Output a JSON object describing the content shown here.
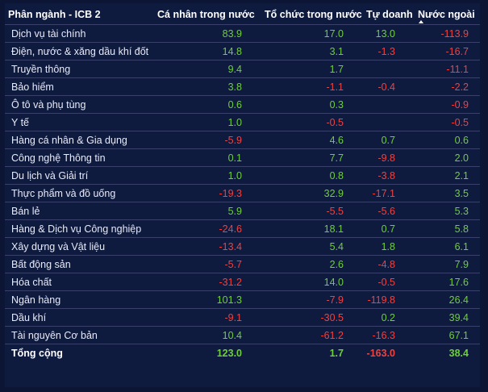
{
  "header": {
    "col0": "Phân ngành - ICB 2",
    "col1": "Cá nhân trong nước",
    "col2": "Tổ chức trong nước",
    "col3": "Tự doanh",
    "col4": "Nước ngoài"
  },
  "rows": [
    {
      "name": "Dịch vụ tài chính",
      "v1": "83.9",
      "v2": "17.0",
      "v3": "13.0",
      "v4": "-113.9"
    },
    {
      "name": "Điện, nước & xăng dầu khí đốt",
      "v1": "14.8",
      "v2": "3.1",
      "v3": "-1.3",
      "v4": "-16.7"
    },
    {
      "name": "Truyền thông",
      "v1": "9.4",
      "v2": "1.7",
      "v3": "",
      "v4": "-11.1"
    },
    {
      "name": "Bảo hiểm",
      "v1": "3.8",
      "v2": "-1.1",
      "v3": "-0.4",
      "v4": "-2.2"
    },
    {
      "name": "Ô tô và phụ tùng",
      "v1": "0.6",
      "v2": "0.3",
      "v3": "",
      "v4": "-0.9"
    },
    {
      "name": "Y tế",
      "v1": "1.0",
      "v2": "-0.5",
      "v3": "",
      "v4": "-0.5"
    },
    {
      "name": "Hàng cá nhân & Gia dụng",
      "v1": "-5.9",
      "v2": "4.6",
      "v3": "0.7",
      "v4": "0.6"
    },
    {
      "name": "Công nghệ Thông tin",
      "v1": "0.1",
      "v2": "7.7",
      "v3": "-9.8",
      "v4": "2.0"
    },
    {
      "name": "Du lịch và Giải trí",
      "v1": "1.0",
      "v2": "0.8",
      "v3": "-3.8",
      "v4": "2.1"
    },
    {
      "name": "Thực phẩm và đồ uống",
      "v1": "-19.3",
      "v2": "32.9",
      "v3": "-17.1",
      "v4": "3.5"
    },
    {
      "name": "Bán lẻ",
      "v1": "5.9",
      "v2": "-5.5",
      "v3": "-5.6",
      "v4": "5.3"
    },
    {
      "name": "Hàng & Dịch vụ Công nghiệp",
      "v1": "-24.6",
      "v2": "18.1",
      "v3": "0.7",
      "v4": "5.8"
    },
    {
      "name": "Xây dựng và Vật liệu",
      "v1": "-13.4",
      "v2": "5.4",
      "v3": "1.8",
      "v4": "6.1"
    },
    {
      "name": "Bất động sản",
      "v1": "-5.7",
      "v2": "2.6",
      "v3": "-4.8",
      "v4": "7.9"
    },
    {
      "name": "Hóa chất",
      "v1": "-31.2",
      "v2": "14.0",
      "v3": "-0.5",
      "v4": "17.6"
    },
    {
      "name": "Ngân hàng",
      "v1": "101.3",
      "v2": "-7.9",
      "v3": "-119.8",
      "v4": "26.4"
    },
    {
      "name": "Dầu khí",
      "v1": "-9.1",
      "v2": "-30.5",
      "v3": "0.2",
      "v4": "39.4"
    },
    {
      "name": "Tài nguyên Cơ bản",
      "v1": "10.4",
      "v2": "-61.2",
      "v3": "-16.3",
      "v4": "67.1"
    }
  ],
  "total": {
    "name": "Tổng cộng",
    "v1": "123.0",
    "v2": "1.7",
    "v3": "-163.0",
    "v4": "38.4"
  },
  "colors": {
    "positive": "#6fcf3a",
    "negative": "#f0413e",
    "background": "#0f1a3f"
  },
  "sort": {
    "column": "Nước ngoài",
    "direction": "ascending",
    "icon": "sort-up-icon"
  }
}
